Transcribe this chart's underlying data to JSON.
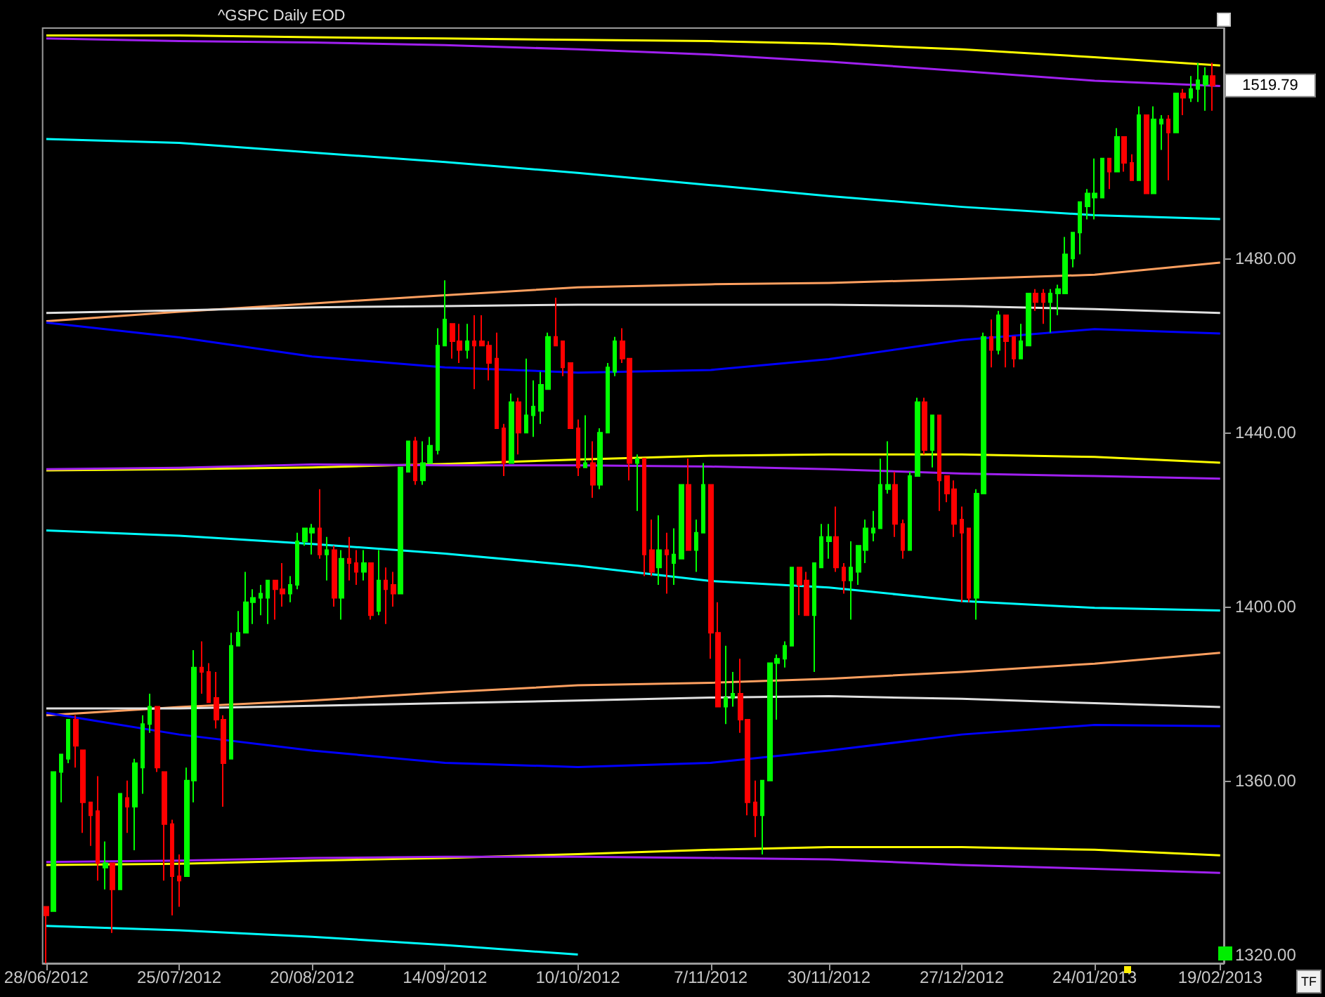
{
  "chart_data": {
    "type": "candlestick",
    "title": "^GSPC Daily EOD",
    "categories": [
      "28/06/2012",
      null,
      null,
      null,
      null,
      null,
      null,
      null,
      null,
      null,
      null,
      null,
      null,
      null,
      null,
      null,
      null,
      null,
      "25/07/2012",
      null,
      null,
      null,
      null,
      null,
      null,
      null,
      null,
      null,
      null,
      null,
      null,
      null,
      null,
      null,
      null,
      null,
      "20/08/2012",
      null,
      null,
      null,
      null,
      null,
      null,
      null,
      null,
      null,
      null,
      null,
      null,
      null,
      null,
      null,
      null,
      null,
      "14/09/2012",
      null,
      null,
      null,
      null,
      null,
      null,
      null,
      null,
      null,
      null,
      null,
      null,
      null,
      null,
      null,
      null,
      null,
      "10/10/2012",
      null,
      null,
      null,
      null,
      null,
      null,
      null,
      null,
      null,
      null,
      null,
      null,
      null,
      null,
      null,
      null,
      null,
      "7/11/2012",
      null,
      null,
      null,
      null,
      null,
      null,
      null,
      null,
      null,
      null,
      null,
      null,
      null,
      null,
      null,
      "30/11/2012",
      null,
      null,
      null,
      null,
      null,
      null,
      null,
      null,
      null,
      null,
      null,
      null,
      null,
      null,
      null,
      null,
      null,
      "27/12/2012",
      null,
      null,
      null,
      null,
      null,
      null,
      null,
      null,
      null,
      null,
      null,
      null,
      null,
      null,
      null,
      null,
      null,
      "24/01/2013",
      null,
      null,
      null,
      null,
      null,
      null,
      null,
      null,
      null,
      null,
      null,
      null,
      null,
      null,
      null,
      null,
      "19/02/2013"
    ],
    "ohlc": [
      [
        1331,
        1331,
        1318,
        1329
      ],
      [
        1330,
        1362,
        1330,
        1362
      ],
      [
        1362,
        1366,
        1355,
        1366
      ],
      [
        1365,
        1374,
        1364,
        1374
      ],
      [
        1374,
        1375,
        1363,
        1368
      ],
      [
        1367,
        1367,
        1348,
        1355
      ],
      [
        1355,
        1355,
        1345,
        1352
      ],
      [
        1353,
        1361,
        1337,
        1341
      ],
      [
        1340,
        1346,
        1335,
        1341
      ],
      [
        1341,
        1341,
        1325,
        1335
      ],
      [
        1335,
        1357,
        1335,
        1357
      ],
      [
        1356,
        1360,
        1348,
        1354
      ],
      [
        1354,
        1365,
        1344,
        1364
      ],
      [
        1363,
        1375,
        1357,
        1373
      ],
      [
        1373,
        1380,
        1371,
        1377
      ],
      [
        1377,
        1377,
        1362,
        1363
      ],
      [
        1362,
        1362,
        1337,
        1350
      ],
      [
        1350,
        1351,
        1329,
        1338
      ],
      [
        1338,
        1343,
        1331,
        1337
      ],
      [
        1338,
        1363,
        1338,
        1360
      ],
      [
        1360,
        1390,
        1355,
        1386
      ],
      [
        1386,
        1392,
        1380,
        1385
      ],
      [
        1385,
        1387,
        1378,
        1378
      ],
      [
        1379,
        1385,
        1372,
        1374
      ],
      [
        1374,
        1375,
        1354,
        1364
      ],
      [
        1365,
        1394,
        1365,
        1391
      ],
      [
        1391,
        1399,
        1391,
        1394
      ],
      [
        1394,
        1408,
        1394,
        1401
      ],
      [
        1401,
        1404,
        1396,
        1402
      ],
      [
        1402,
        1405,
        1398,
        1403
      ],
      [
        1402,
        1406,
        1396,
        1406
      ],
      [
        1406,
        1406,
        1397,
        1404
      ],
      [
        1404,
        1410,
        1400,
        1403
      ],
      [
        1403,
        1407,
        1401,
        1405
      ],
      [
        1405,
        1417,
        1404,
        1415
      ],
      [
        1415,
        1418,
        1414,
        1418
      ],
      [
        1417,
        1419,
        1412,
        1418
      ],
      [
        1418,
        1427,
        1411,
        1412
      ],
      [
        1412,
        1416,
        1406,
        1413
      ],
      [
        1413,
        1414,
        1400,
        1402
      ],
      [
        1402,
        1413,
        1397,
        1411
      ],
      [
        1411,
        1416,
        1406,
        1410
      ],
      [
        1410,
        1413,
        1405,
        1408
      ],
      [
        1408,
        1413,
        1406,
        1410
      ],
      [
        1410,
        1410,
        1397,
        1398
      ],
      [
        1399,
        1413,
        1398,
        1406
      ],
      [
        1406,
        1409,
        1396,
        1404
      ],
      [
        1405,
        1408,
        1400,
        1403
      ],
      [
        1403,
        1432,
        1403,
        1432
      ],
      [
        1431,
        1438,
        1431,
        1438
      ],
      [
        1438,
        1439,
        1428,
        1429
      ],
      [
        1429,
        1438,
        1428,
        1433
      ],
      [
        1433,
        1439,
        1433,
        1437
      ],
      [
        1436,
        1464,
        1435,
        1460
      ],
      [
        1460,
        1475,
        1460,
        1466
      ],
      [
        1465,
        1465,
        1457,
        1461
      ],
      [
        1461,
        1465,
        1456,
        1459
      ],
      [
        1459,
        1465,
        1457,
        1461
      ],
      [
        1461,
        1467,
        1450,
        1460
      ],
      [
        1461,
        1467,
        1460,
        1460
      ],
      [
        1460,
        1461,
        1452,
        1456
      ],
      [
        1457,
        1463,
        1441,
        1441
      ],
      [
        1441,
        1442,
        1430,
        1433
      ],
      [
        1433,
        1449,
        1433,
        1447
      ],
      [
        1447,
        1448,
        1435,
        1440
      ],
      [
        1440,
        1457,
        1440,
        1444
      ],
      [
        1444,
        1452,
        1439,
        1446
      ],
      [
        1445,
        1454,
        1442,
        1451
      ],
      [
        1450,
        1463,
        1450,
        1462
      ],
      [
        1462,
        1471,
        1460,
        1460
      ],
      [
        1461,
        1461,
        1453,
        1455
      ],
      [
        1456,
        1456,
        1441,
        1441
      ],
      [
        1441,
        1443,
        1430,
        1432
      ],
      [
        1432,
        1444,
        1432,
        1433
      ],
      [
        1433,
        1438,
        1425,
        1428
      ],
      [
        1428,
        1441,
        1427,
        1440
      ],
      [
        1440,
        1456,
        1440,
        1455
      ],
      [
        1454,
        1462,
        1453,
        1461
      ],
      [
        1461,
        1464,
        1456,
        1457
      ],
      [
        1457,
        1457,
        1429,
        1433
      ],
      [
        1433,
        1435,
        1422,
        1434
      ],
      [
        1434,
        1434,
        1407,
        1412
      ],
      [
        1413,
        1420,
        1407,
        1408
      ],
      [
        1409,
        1421,
        1405,
        1413
      ],
      [
        1413,
        1417,
        1403,
        1412
      ],
      [
        1410,
        1418,
        1405,
        1412
      ],
      [
        1411,
        1428,
        1411,
        1428
      ],
      [
        1428,
        1434,
        1413,
        1413
      ],
      [
        1413,
        1420,
        1408,
        1417
      ],
      [
        1417,
        1433,
        1417,
        1428
      ],
      [
        1428,
        1428,
        1388,
        1394
      ],
      [
        1394,
        1401,
        1377,
        1377
      ],
      [
        1377,
        1391,
        1373,
        1379
      ],
      [
        1379,
        1385,
        1377,
        1380
      ],
      [
        1380,
        1388,
        1371,
        1374
      ],
      [
        1374,
        1374,
        1352,
        1355
      ],
      [
        1355,
        1360,
        1347,
        1352
      ],
      [
        1352,
        1360,
        1343,
        1360
      ],
      [
        1360,
        1387,
        1360,
        1387
      ],
      [
        1387,
        1389,
        1374,
        1388
      ],
      [
        1388,
        1392,
        1386,
        1391
      ],
      [
        1391,
        1409,
        1391,
        1409
      ],
      [
        1409,
        1409,
        1398,
        1405
      ],
      [
        1406,
        1408,
        1398,
        1398
      ],
      [
        1398,
        1410,
        1385,
        1410
      ],
      [
        1409,
        1419,
        1409,
        1416
      ],
      [
        1415,
        1419,
        1411,
        1416
      ],
      [
        1416,
        1423,
        1408,
        1409
      ],
      [
        1409,
        1410,
        1403,
        1406
      ],
      [
        1406,
        1415,
        1397,
        1409
      ],
      [
        1408,
        1414,
        1405,
        1414
      ],
      [
        1413,
        1420,
        1410,
        1418
      ],
      [
        1417,
        1422,
        1415,
        1418
      ],
      [
        1418,
        1434,
        1418,
        1428
      ],
      [
        1427,
        1438,
        1426,
        1428
      ],
      [
        1428,
        1431,
        1416,
        1419
      ],
      [
        1419,
        1420,
        1411,
        1413
      ],
      [
        1413,
        1431,
        1413,
        1430
      ],
      [
        1430,
        1448,
        1430,
        1447
      ],
      [
        1447,
        1448,
        1435,
        1436
      ],
      [
        1436,
        1444,
        1432,
        1444
      ],
      [
        1444,
        1444,
        1422,
        1429
      ],
      [
        1430,
        1430,
        1424,
        1426
      ],
      [
        1427,
        1429,
        1416,
        1419
      ],
      [
        1420,
        1423,
        1401,
        1417
      ],
      [
        1418,
        1418,
        1401,
        1402
      ],
      [
        1402,
        1427,
        1397,
        1426
      ],
      [
        1426,
        1463,
        1426,
        1462
      ],
      [
        1462,
        1466,
        1455,
        1459
      ],
      [
        1459,
        1468,
        1458,
        1467
      ],
      [
        1467,
        1467,
        1455,
        1461
      ],
      [
        1462,
        1462,
        1455,
        1457
      ],
      [
        1457,
        1465,
        1457,
        1461
      ],
      [
        1460,
        1472,
        1460,
        1472
      ],
      [
        1472,
        1473,
        1468,
        1470
      ],
      [
        1472,
        1473,
        1465,
        1470
      ],
      [
        1470,
        1473,
        1463,
        1472
      ],
      [
        1472,
        1474,
        1467,
        1473
      ],
      [
        1472,
        1485,
        1472,
        1481
      ],
      [
        1480,
        1486,
        1478,
        1486
      ],
      [
        1486,
        1493,
        1481,
        1493
      ],
      [
        1492,
        1496,
        1489,
        1495
      ],
      [
        1494,
        1503,
        1489,
        1495
      ],
      [
        1494,
        1503,
        1494,
        1503
      ],
      [
        1503,
        1503,
        1496,
        1500
      ],
      [
        1500,
        1510,
        1500,
        1508
      ],
      [
        1508,
        1508,
        1500,
        1502
      ],
      [
        1502,
        1504,
        1498,
        1498
      ],
      [
        1498,
        1515,
        1498,
        1513
      ],
      [
        1513,
        1513,
        1495,
        1495
      ],
      [
        1495,
        1515,
        1495,
        1512
      ],
      [
        1511,
        1513,
        1505,
        1512
      ],
      [
        1512,
        1513,
        1498,
        1509
      ],
      [
        1509,
        1518,
        1509,
        1518
      ],
      [
        1518,
        1519,
        1513,
        1517
      ],
      [
        1517,
        1522,
        1516,
        1519
      ],
      [
        1519,
        1525,
        1516,
        1521
      ],
      [
        1520,
        1524,
        1514,
        1522
      ],
      [
        1522,
        1525,
        1514,
        1519.79
      ],
      null
    ],
    "series": [
      {
        "type": "line",
        "color": "#ffff00",
        "x": [
          "28/06/2012",
          "25/07/2012",
          "20/08/2012",
          "14/09/2012",
          "10/10/2012",
          "7/11/2012",
          "30/11/2012",
          "27/12/2012",
          "24/01/2013",
          "19/02/2013"
        ],
        "values": [
          1531.3,
          1531.3,
          1530.9,
          1530.6,
          1530.3,
          1530,
          1529.4,
          1528.1,
          1526.3,
          1524.4
        ]
      },
      {
        "type": "line",
        "color": "#a020f0",
        "x": [
          "28/06/2012",
          "25/07/2012",
          "20/08/2012",
          "14/09/2012",
          "10/10/2012",
          "7/11/2012",
          "30/11/2012",
          "27/12/2012",
          "24/01/2013",
          "19/02/2013"
        ],
        "values": [
          1530.6,
          1530,
          1529.7,
          1529.1,
          1528.1,
          1526.9,
          1525.3,
          1523.1,
          1520.9,
          1519.7
        ]
      },
      {
        "type": "line",
        "color": "#00ffff",
        "x": [
          "28/06/2012",
          "25/07/2012",
          "20/08/2012",
          "14/09/2012",
          "10/10/2012",
          "7/11/2012",
          "30/11/2012",
          "27/12/2012",
          "24/01/2013",
          "19/02/2013"
        ],
        "values": [
          1507.5,
          1506.6,
          1504.4,
          1502.2,
          1499.7,
          1496.9,
          1494.4,
          1491.9,
          1490,
          1489.1
        ]
      },
      {
        "type": "line",
        "color": "#ffa060",
        "x": [
          "28/06/2012",
          "25/07/2012",
          "20/08/2012",
          "14/09/2012",
          "10/10/2012",
          "7/11/2012",
          "30/11/2012",
          "27/12/2012",
          "24/01/2013",
          "19/02/2013"
        ],
        "values": [
          1465.6,
          1467.8,
          1469.7,
          1471.6,
          1473.4,
          1474.1,
          1474.4,
          1475.3,
          1476.3,
          1479.1
        ]
      },
      {
        "type": "line",
        "color": "#e0e0e0",
        "x": [
          "28/06/2012",
          "25/07/2012",
          "20/08/2012",
          "14/09/2012",
          "10/10/2012",
          "7/11/2012",
          "30/11/2012",
          "27/12/2012",
          "24/01/2013",
          "19/02/2013"
        ],
        "values": [
          1467.5,
          1468.1,
          1468.8,
          1469.1,
          1469.4,
          1469.4,
          1469.4,
          1469.1,
          1468.4,
          1467.5
        ]
      },
      {
        "type": "line",
        "color": "#0000ff",
        "x": [
          "28/06/2012",
          "25/07/2012",
          "20/08/2012",
          "14/09/2012",
          "10/10/2012",
          "7/11/2012",
          "30/11/2012",
          "27/12/2012",
          "24/01/2013",
          "19/02/2013"
        ],
        "values": [
          1465.3,
          1461.9,
          1457.5,
          1455,
          1453.8,
          1454.4,
          1456.9,
          1461.3,
          1463.8,
          1462.8
        ]
      },
      {
        "type": "line",
        "color": "#ffff00",
        "x": [
          "28/06/2012",
          "25/07/2012",
          "20/08/2012",
          "14/09/2012",
          "10/10/2012",
          "7/11/2012",
          "30/11/2012",
          "27/12/2012",
          "24/01/2013",
          "19/02/2013"
        ],
        "values": [
          1431.3,
          1431.6,
          1432,
          1432.8,
          1433.8,
          1434.7,
          1435,
          1435,
          1434.4,
          1433.1
        ]
      },
      {
        "type": "line",
        "color": "#a020f0",
        "x": [
          "28/06/2012",
          "25/07/2012",
          "20/08/2012",
          "14/09/2012",
          "10/10/2012",
          "7/11/2012",
          "30/11/2012",
          "27/12/2012",
          "24/01/2013",
          "19/02/2013"
        ],
        "values": [
          1431.6,
          1431.9,
          1432.7,
          1432.5,
          1432.5,
          1432.2,
          1431.6,
          1430.6,
          1430,
          1429.4
        ]
      },
      {
        "type": "line",
        "color": "#00ffff",
        "x": [
          "28/06/2012",
          "25/07/2012",
          "20/08/2012",
          "14/09/2012",
          "10/10/2012",
          "7/11/2012",
          "30/11/2012",
          "27/12/2012",
          "24/01/2013",
          "19/02/2013"
        ],
        "values": [
          1417.5,
          1416.3,
          1414.4,
          1412.2,
          1409.4,
          1405.9,
          1404.4,
          1401.3,
          1399.7,
          1399.1
        ]
      },
      {
        "type": "line",
        "color": "#ffa060",
        "x": [
          "28/06/2012",
          "25/07/2012",
          "20/08/2012",
          "14/09/2012",
          "10/10/2012",
          "7/11/2012",
          "30/11/2012",
          "27/12/2012",
          "24/01/2013",
          "19/02/2013"
        ],
        "values": [
          1375,
          1376.9,
          1378.4,
          1380.3,
          1381.9,
          1382.5,
          1383.4,
          1385,
          1386.9,
          1389.4
        ]
      },
      {
        "type": "line",
        "color": "#e0e0e0",
        "x": [
          "28/06/2012",
          "25/07/2012",
          "20/08/2012",
          "14/09/2012",
          "10/10/2012",
          "7/11/2012",
          "30/11/2012",
          "27/12/2012",
          "24/01/2013",
          "19/02/2013"
        ],
        "values": [
          1376.6,
          1376.6,
          1377.2,
          1377.8,
          1378.4,
          1379.1,
          1379.4,
          1378.8,
          1377.8,
          1376.9
        ]
      },
      {
        "type": "line",
        "color": "#0000ff",
        "x": [
          "28/06/2012",
          "25/07/2012",
          "20/08/2012",
          "14/09/2012",
          "10/10/2012",
          "7/11/2012",
          "30/11/2012",
          "27/12/2012",
          "24/01/2013",
          "19/02/2013"
        ],
        "values": [
          1375.6,
          1370.6,
          1366.9,
          1364.1,
          1363.1,
          1364.1,
          1366.9,
          1370.6,
          1372.8,
          1372.5
        ]
      },
      {
        "type": "line",
        "color": "#ffff00",
        "x": [
          "28/06/2012",
          "25/07/2012",
          "20/08/2012",
          "14/09/2012",
          "10/10/2012",
          "7/11/2012",
          "30/11/2012",
          "27/12/2012",
          "24/01/2013",
          "19/02/2013"
        ],
        "values": [
          1340.6,
          1340.9,
          1341.6,
          1342.2,
          1343.1,
          1344.1,
          1344.7,
          1344.7,
          1344.1,
          1342.8
        ]
      },
      {
        "type": "line",
        "color": "#a020f0",
        "x": [
          "28/06/2012",
          "25/07/2012",
          "20/08/2012",
          "14/09/2012",
          "10/10/2012",
          "7/11/2012",
          "30/11/2012",
          "27/12/2012",
          "24/01/2013",
          "19/02/2013"
        ],
        "values": [
          1341.3,
          1341.6,
          1342.2,
          1342.5,
          1342.5,
          1342.2,
          1341.9,
          1340.6,
          1339.7,
          1338.8
        ]
      },
      {
        "type": "line",
        "color": "#00ffff",
        "x": [
          "28/06/2012",
          "25/07/2012",
          "20/08/2012",
          "14/09/2012",
          "10/10/2012"
        ],
        "values": [
          1326.6,
          1325.6,
          1324.1,
          1322.2,
          1320
        ]
      }
    ],
    "ylim": [
      1318,
      1533
    ],
    "yticks": [
      {
        "value": 1320,
        "label": "1320.00"
      },
      {
        "value": 1360,
        "label": "1360.00"
      },
      {
        "value": 1400,
        "label": "1400.00"
      },
      {
        "value": 1440,
        "label": "1440.00"
      },
      {
        "value": 1480,
        "label": "1480.00"
      }
    ],
    "marker": "none",
    "annotations": [
      "1519.79",
      "TF"
    ]
  }
}
